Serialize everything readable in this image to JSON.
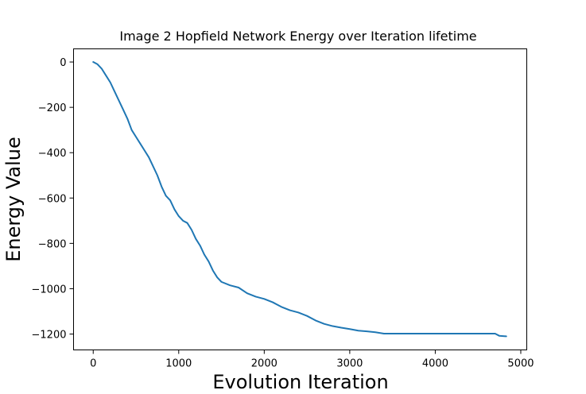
{
  "chart_data": {
    "type": "line",
    "title": "Image 2 Hopfield Network Energy over Iteration lifetime",
    "xlabel": "Evolution Iteration",
    "ylabel": "Energy Value",
    "xlim": [
      -230,
      5070
    ],
    "ylim": [
      -1270,
      58
    ],
    "xticks": [
      0,
      1000,
      2000,
      3000,
      4000,
      5000
    ],
    "yticks": [
      0,
      -200,
      -400,
      -600,
      -800,
      -1000,
      -1200
    ],
    "xtick_labels": [
      "0",
      "1000",
      "2000",
      "3000",
      "4000",
      "5000"
    ],
    "ytick_labels": [
      "0",
      "−200",
      "−400",
      "−600",
      "−800",
      "−1000",
      "−1200"
    ],
    "grid": false,
    "series": [
      {
        "color": "#1f77b4",
        "x": [
          0,
          50,
          100,
          150,
          200,
          250,
          300,
          350,
          400,
          450,
          500,
          550,
          600,
          650,
          700,
          750,
          800,
          850,
          900,
          950,
          1000,
          1050,
          1100,
          1150,
          1200,
          1250,
          1300,
          1350,
          1400,
          1450,
          1500,
          1600,
          1700,
          1800,
          1900,
          2000,
          2100,
          2200,
          2300,
          2400,
          2500,
          2600,
          2700,
          2800,
          2900,
          3000,
          3100,
          3200,
          3300,
          3400,
          3600,
          3800,
          4000,
          4200,
          4400,
          4600,
          4700,
          4750,
          4830
        ],
        "y": [
          0,
          -10,
          -30,
          -60,
          -90,
          -130,
          -170,
          -210,
          -250,
          -300,
          -330,
          -360,
          -390,
          -420,
          -460,
          -500,
          -550,
          -590,
          -610,
          -650,
          -680,
          -700,
          -710,
          -740,
          -780,
          -810,
          -850,
          -880,
          -920,
          -950,
          -970,
          -985,
          -995,
          -1020,
          -1035,
          -1045,
          -1060,
          -1080,
          -1095,
          -1105,
          -1120,
          -1140,
          -1155,
          -1165,
          -1172,
          -1178,
          -1185,
          -1188,
          -1192,
          -1198,
          -1198,
          -1198,
          -1198,
          -1198,
          -1198,
          -1198,
          -1198,
          -1208,
          -1210
        ]
      }
    ]
  }
}
